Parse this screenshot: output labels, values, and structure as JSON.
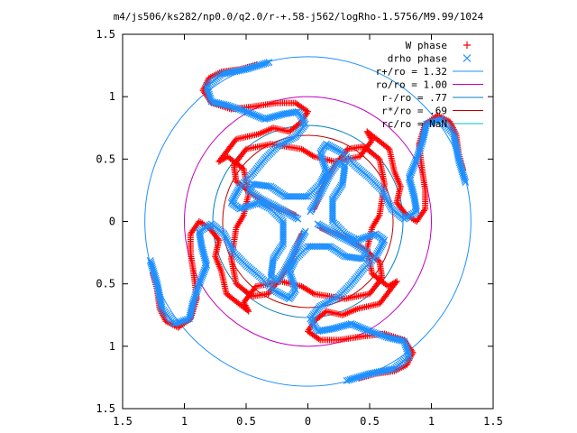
{
  "chart_data": {
    "type": "scatter",
    "title": "m4/js506/ks282/np0.0/q2.0/r-+.58-j562/logRho-1.5756/M9.99/1024",
    "xlabel": "",
    "ylabel": "",
    "xlim": [
      -1.5,
      1.5
    ],
    "ylim": [
      -1.5,
      1.5
    ],
    "x_ticks": [
      -1.5,
      -1,
      -0.5,
      0,
      0.5,
      1,
      1.5
    ],
    "x_tick_labels": [
      "1.5",
      "1",
      "0.5",
      "0",
      "0.5",
      "1",
      "1.5"
    ],
    "y_ticks": [
      1.5,
      1,
      0.5,
      0,
      -0.5,
      -1,
      -1.5
    ],
    "y_tick_labels": [
      "1.5",
      "1",
      "0.5",
      "0",
      "0.5",
      "1",
      "1.5"
    ],
    "grid": false,
    "legend_position": "top-right",
    "series": [
      {
        "name": "W phase",
        "marker": "plus",
        "color": "#ff0000",
        "arms": [
          [
            [
              0.05,
              0.1
            ],
            [
              0.12,
              0.28
            ],
            [
              0.22,
              0.45
            ],
            [
              0.32,
              0.58
            ],
            [
              0.45,
              0.6
            ],
            [
              0.58,
              0.5
            ],
            [
              0.62,
              0.3
            ],
            [
              0.58,
              0.05
            ],
            [
              0.52,
              -0.05
            ],
            [
              0.48,
              -0.22
            ],
            [
              0.52,
              -0.42
            ],
            [
              0.65,
              -0.52
            ],
            [
              0.72,
              -0.48
            ],
            [
              0.58,
              -0.66
            ],
            [
              0.4,
              -0.7
            ],
            [
              0.28,
              -0.75
            ],
            [
              0.15,
              -0.72
            ],
            [
              0.05,
              -0.8
            ],
            [
              0.0,
              -0.88
            ],
            [
              0.1,
              -0.95
            ],
            [
              0.25,
              -0.95
            ],
            [
              0.45,
              -0.92
            ],
            [
              0.62,
              -0.9
            ],
            [
              0.78,
              -0.95
            ],
            [
              0.85,
              -1.05
            ],
            [
              0.8,
              -1.15
            ],
            [
              0.7,
              -1.2
            ],
            [
              0.55,
              -1.22
            ],
            [
              0.4,
              -1.26
            ]
          ],
          [
            [
              -0.1,
              0.05
            ],
            [
              -0.28,
              0.12
            ],
            [
              -0.45,
              0.22
            ],
            [
              -0.58,
              0.32
            ],
            [
              -0.6,
              0.45
            ],
            [
              -0.5,
              0.58
            ],
            [
              -0.3,
              0.62
            ],
            [
              -0.05,
              0.58
            ],
            [
              0.05,
              0.52
            ],
            [
              0.22,
              0.48
            ],
            [
              0.42,
              0.52
            ],
            [
              0.52,
              0.65
            ],
            [
              0.48,
              0.72
            ],
            [
              0.66,
              0.58
            ],
            [
              0.7,
              0.4
            ],
            [
              0.75,
              0.28
            ],
            [
              0.72,
              0.15
            ],
            [
              0.8,
              0.05
            ],
            [
              0.88,
              0.0
            ],
            [
              0.95,
              0.1
            ],
            [
              0.95,
              0.25
            ],
            [
              0.92,
              0.45
            ],
            [
              0.9,
              0.62
            ],
            [
              0.95,
              0.78
            ],
            [
              1.05,
              0.85
            ],
            [
              1.15,
              0.8
            ],
            [
              1.2,
              0.7
            ],
            [
              1.22,
              0.55
            ],
            [
              1.26,
              0.4
            ]
          ],
          [
            [
              -0.05,
              -0.1
            ],
            [
              -0.12,
              -0.28
            ],
            [
              -0.22,
              -0.45
            ],
            [
              -0.32,
              -0.58
            ],
            [
              -0.45,
              -0.6
            ],
            [
              -0.58,
              -0.5
            ],
            [
              -0.62,
              -0.3
            ],
            [
              -0.58,
              -0.05
            ],
            [
              -0.52,
              0.05
            ],
            [
              -0.48,
              0.22
            ],
            [
              -0.52,
              0.42
            ],
            [
              -0.65,
              0.52
            ],
            [
              -0.72,
              0.48
            ],
            [
              -0.58,
              0.66
            ],
            [
              -0.4,
              0.7
            ],
            [
              -0.28,
              0.75
            ],
            [
              -0.15,
              0.72
            ],
            [
              -0.05,
              0.8
            ],
            [
              0.0,
              0.88
            ],
            [
              -0.1,
              0.95
            ],
            [
              -0.25,
              0.95
            ],
            [
              -0.45,
              0.92
            ],
            [
              -0.62,
              0.9
            ],
            [
              -0.78,
              0.95
            ],
            [
              -0.85,
              1.05
            ],
            [
              -0.8,
              1.15
            ],
            [
              -0.7,
              1.2
            ],
            [
              -0.55,
              1.22
            ],
            [
              -0.4,
              1.26
            ]
          ],
          [
            [
              0.1,
              -0.05
            ],
            [
              0.28,
              -0.12
            ],
            [
              0.45,
              -0.22
            ],
            [
              0.58,
              -0.32
            ],
            [
              0.6,
              -0.45
            ],
            [
              0.5,
              -0.58
            ],
            [
              0.3,
              -0.62
            ],
            [
              0.05,
              -0.58
            ],
            [
              -0.05,
              -0.52
            ],
            [
              -0.22,
              -0.48
            ],
            [
              -0.42,
              -0.52
            ],
            [
              -0.52,
              -0.65
            ],
            [
              -0.48,
              -0.72
            ],
            [
              -0.66,
              -0.58
            ],
            [
              -0.7,
              -0.4
            ],
            [
              -0.75,
              -0.28
            ],
            [
              -0.72,
              -0.15
            ],
            [
              -0.8,
              -0.05
            ],
            [
              -0.88,
              0.0
            ],
            [
              -0.95,
              -0.1
            ],
            [
              -0.95,
              -0.25
            ],
            [
              -0.92,
              -0.45
            ],
            [
              -0.9,
              -0.62
            ],
            [
              -0.95,
              -0.78
            ],
            [
              -1.05,
              -0.85
            ],
            [
              -1.15,
              -0.8
            ],
            [
              -1.2,
              -0.7
            ],
            [
              -1.22,
              -0.55
            ],
            [
              -1.26,
              -0.4
            ]
          ]
        ]
      },
      {
        "name": "drho phase",
        "marker": "cross",
        "color": "#1e90ff",
        "arms": [
          [
            [
              0.02,
              0.08
            ],
            [
              0.1,
              0.22
            ],
            [
              0.18,
              0.38
            ],
            [
              0.25,
              0.48
            ],
            [
              0.3,
              0.45
            ],
            [
              0.28,
              0.3
            ],
            [
              0.2,
              0.18
            ],
            [
              0.2,
              0.0
            ],
            [
              0.3,
              -0.1
            ],
            [
              0.4,
              -0.15
            ],
            [
              0.55,
              -0.1
            ],
            [
              0.62,
              -0.15
            ],
            [
              0.55,
              -0.28
            ],
            [
              0.45,
              -0.38
            ],
            [
              0.35,
              -0.5
            ],
            [
              0.25,
              -0.6
            ],
            [
              0.1,
              -0.68
            ],
            [
              0.02,
              -0.78
            ],
            [
              0.08,
              -0.88
            ],
            [
              0.2,
              -0.86
            ],
            [
              0.35,
              -0.82
            ],
            [
              0.5,
              -0.88
            ],
            [
              0.65,
              -0.93
            ],
            [
              0.78,
              -0.96
            ],
            [
              0.82,
              -1.08
            ],
            [
              0.7,
              -1.18
            ],
            [
              0.5,
              -1.22
            ],
            [
              0.3,
              -1.28
            ]
          ],
          [
            [
              -0.08,
              0.02
            ],
            [
              -0.22,
              0.1
            ],
            [
              -0.38,
              0.18
            ],
            [
              -0.48,
              0.25
            ],
            [
              -0.45,
              0.3
            ],
            [
              -0.3,
              0.28
            ],
            [
              -0.18,
              0.2
            ],
            [
              0.0,
              0.2
            ],
            [
              0.1,
              0.3
            ],
            [
              0.15,
              0.4
            ],
            [
              0.1,
              0.55
            ],
            [
              0.15,
              0.62
            ],
            [
              0.28,
              0.55
            ],
            [
              0.38,
              0.45
            ],
            [
              0.5,
              0.35
            ],
            [
              0.6,
              0.25
            ],
            [
              0.68,
              0.1
            ],
            [
              0.78,
              0.02
            ],
            [
              0.88,
              0.08
            ],
            [
              0.86,
              0.2
            ],
            [
              0.82,
              0.35
            ],
            [
              0.88,
              0.5
            ],
            [
              0.93,
              0.65
            ],
            [
              0.96,
              0.78
            ],
            [
              1.08,
              0.82
            ],
            [
              1.18,
              0.7
            ],
            [
              1.22,
              0.5
            ],
            [
              1.28,
              0.3
            ]
          ],
          [
            [
              -0.02,
              -0.08
            ],
            [
              -0.1,
              -0.22
            ],
            [
              -0.18,
              -0.38
            ],
            [
              -0.25,
              -0.48
            ],
            [
              -0.3,
              -0.45
            ],
            [
              -0.28,
              -0.3
            ],
            [
              -0.2,
              -0.18
            ],
            [
              -0.2,
              0.0
            ],
            [
              -0.3,
              0.1
            ],
            [
              -0.4,
              0.15
            ],
            [
              -0.55,
              0.1
            ],
            [
              -0.62,
              0.15
            ],
            [
              -0.55,
              0.28
            ],
            [
              -0.45,
              0.38
            ],
            [
              -0.35,
              0.5
            ],
            [
              -0.25,
              0.6
            ],
            [
              -0.1,
              0.68
            ],
            [
              -0.02,
              0.78
            ],
            [
              -0.08,
              0.88
            ],
            [
              -0.2,
              0.86
            ],
            [
              -0.35,
              0.82
            ],
            [
              -0.5,
              0.88
            ],
            [
              -0.65,
              0.93
            ],
            [
              -0.78,
              0.96
            ],
            [
              -0.82,
              1.08
            ],
            [
              -0.7,
              1.18
            ],
            [
              -0.5,
              1.22
            ],
            [
              -0.3,
              1.28
            ]
          ],
          [
            [
              0.08,
              -0.02
            ],
            [
              0.22,
              -0.1
            ],
            [
              0.38,
              -0.18
            ],
            [
              0.48,
              -0.25
            ],
            [
              0.45,
              -0.3
            ],
            [
              0.3,
              -0.28
            ],
            [
              0.18,
              -0.2
            ],
            [
              0.0,
              -0.2
            ],
            [
              -0.1,
              -0.3
            ],
            [
              -0.15,
              -0.4
            ],
            [
              -0.1,
              -0.55
            ],
            [
              -0.15,
              -0.62
            ],
            [
              -0.28,
              -0.55
            ],
            [
              -0.38,
              -0.45
            ],
            [
              -0.5,
              -0.35
            ],
            [
              -0.6,
              -0.25
            ],
            [
              -0.68,
              -0.1
            ],
            [
              -0.78,
              -0.02
            ],
            [
              -0.88,
              -0.08
            ],
            [
              -0.86,
              -0.2
            ],
            [
              -0.82,
              -0.35
            ],
            [
              -0.88,
              -0.5
            ],
            [
              -0.93,
              -0.65
            ],
            [
              -0.96,
              -0.78
            ],
            [
              -1.08,
              -0.82
            ],
            [
              -1.18,
              -0.7
            ],
            [
              -1.22,
              -0.5
            ],
            [
              -1.28,
              -0.3
            ]
          ]
        ]
      }
    ],
    "circles": [
      {
        "label": "r+/ro = 1.32",
        "r": 1.32,
        "color": "#1e90ff"
      },
      {
        "label": "ro/ro = 1.00",
        "r": 1.0,
        "color": "#c000c0"
      },
      {
        "label": "r-/ro = .77",
        "r": 0.77,
        "color": "#0080c0"
      },
      {
        "label": "r*/ro = .69",
        "r": 0.69,
        "color": "#c00000"
      },
      {
        "label": "rc/ro = NaN",
        "r": null,
        "color": "#00c0c0"
      }
    ]
  }
}
